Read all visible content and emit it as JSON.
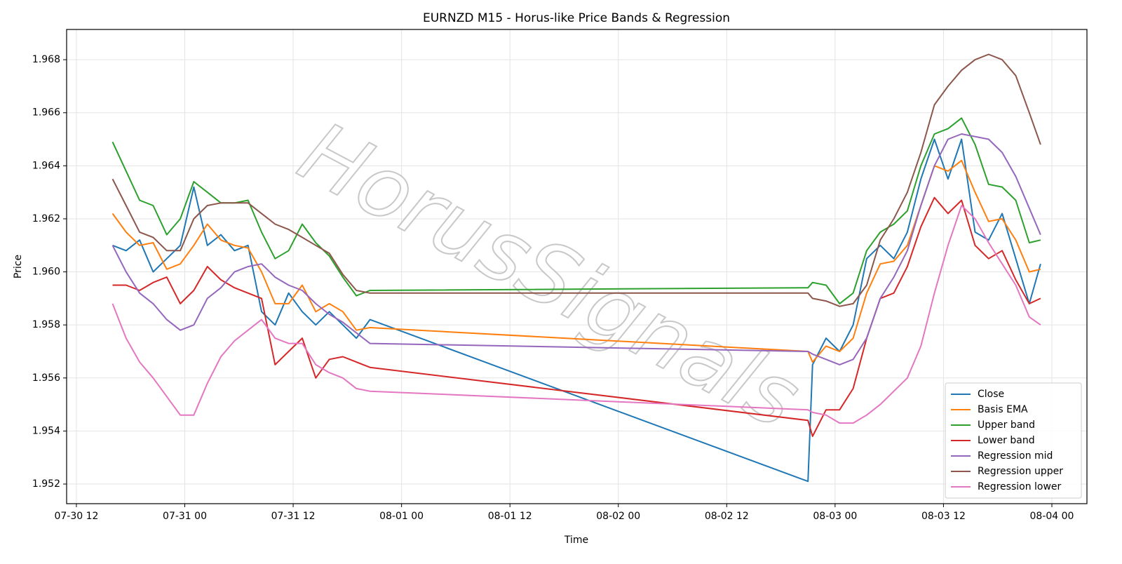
{
  "chart_data": {
    "type": "line",
    "title": "EURNZD M15 - Horus-like Price Bands & Regression",
    "x_label": "Time",
    "y_label": "Price",
    "watermark": "HorusSignals",
    "x": [
      "07-30 16:00",
      "07-30 17:30",
      "07-30 19:00",
      "07-30 20:30",
      "07-30 22:00",
      "07-30 23:30",
      "07-31 01:00",
      "07-31 02:30",
      "07-31 04:00",
      "07-31 05:30",
      "07-31 07:00",
      "07-31 08:30",
      "07-31 10:00",
      "07-31 11:30",
      "07-31 13:00",
      "07-31 14:30",
      "07-31 16:00",
      "07-31 17:30",
      "07-31 19:00",
      "07-31 20:30",
      "08-02 21:00",
      "08-02 21:30",
      "08-02 23:00",
      "08-03 00:30",
      "08-03 02:00",
      "08-03 03:30",
      "08-03 05:00",
      "08-03 06:30",
      "08-03 08:00",
      "08-03 09:30",
      "08-03 11:00",
      "08-03 12:30",
      "08-03 14:00",
      "08-03 15:30",
      "08-03 17:00",
      "08-03 18:30",
      "08-03 20:00",
      "08-03 21:30",
      "08-03 22:45"
    ],
    "series": [
      {
        "name": "Close",
        "color": "#1f77b4",
        "values": [
          1.961,
          1.9608,
          1.9612,
          1.96,
          1.9605,
          1.961,
          1.9632,
          1.961,
          1.9614,
          1.9608,
          1.961,
          1.9585,
          1.958,
          1.9592,
          1.9585,
          1.958,
          1.9585,
          1.958,
          1.9575,
          1.9582,
          1.9521,
          1.9565,
          1.9575,
          1.957,
          1.958,
          1.9605,
          1.961,
          1.9605,
          1.9615,
          1.9635,
          1.965,
          1.9635,
          1.965,
          1.9615,
          1.9612,
          1.9622,
          1.9605,
          1.9588,
          1.9603
        ]
      },
      {
        "name": "Basis EMA",
        "color": "#ff7f0e",
        "values": [
          1.9622,
          1.9615,
          1.961,
          1.9611,
          1.9601,
          1.9603,
          1.961,
          1.9618,
          1.9612,
          1.961,
          1.9609,
          1.96,
          1.9588,
          1.9588,
          1.9595,
          1.9585,
          1.9588,
          1.9585,
          1.9578,
          1.9579,
          1.957,
          1.9566,
          1.9572,
          1.957,
          1.9575,
          1.9592,
          1.9603,
          1.9604,
          1.961,
          1.9625,
          1.964,
          1.9638,
          1.9642,
          1.963,
          1.9619,
          1.962,
          1.9612,
          1.96,
          1.9601
        ]
      },
      {
        "name": "Upper band",
        "color": "#2ca02c",
        "values": [
          1.9649,
          1.9638,
          1.9627,
          1.9625,
          1.9614,
          1.962,
          1.9634,
          1.963,
          1.9626,
          1.9626,
          1.9627,
          1.9615,
          1.9605,
          1.9608,
          1.9618,
          1.9611,
          1.9606,
          1.9598,
          1.9591,
          1.9593,
          1.9594,
          1.9596,
          1.9595,
          1.9588,
          1.9592,
          1.9608,
          1.9615,
          1.9618,
          1.9623,
          1.964,
          1.9652,
          1.9654,
          1.9658,
          1.9648,
          1.9633,
          1.9632,
          1.9627,
          1.9611,
          1.9612
        ]
      },
      {
        "name": "Lower band",
        "color": "#d62728",
        "values": [
          1.9595,
          1.9595,
          1.9593,
          1.9596,
          1.9598,
          1.9588,
          1.9593,
          1.9602,
          1.9597,
          1.9594,
          1.9592,
          1.959,
          1.9565,
          1.957,
          1.9575,
          1.956,
          1.9567,
          1.9568,
          1.9566,
          1.9564,
          1.9544,
          1.9538,
          1.9548,
          1.9548,
          1.9556,
          1.9575,
          1.959,
          1.9592,
          1.9602,
          1.9617,
          1.9628,
          1.9622,
          1.9627,
          1.961,
          1.9605,
          1.9608,
          1.9597,
          1.9588,
          1.959
        ]
      },
      {
        "name": "Regression mid",
        "color": "#9467bd",
        "values": [
          1.961,
          1.96,
          1.9592,
          1.9588,
          1.9582,
          1.9578,
          1.958,
          1.959,
          1.9594,
          1.96,
          1.9602,
          1.9603,
          1.9598,
          1.9595,
          1.9593,
          1.9588,
          1.9584,
          1.9581,
          1.9577,
          1.9573,
          1.957,
          1.9569,
          1.9567,
          1.9565,
          1.9567,
          1.9575,
          1.959,
          1.9598,
          1.9608,
          1.9625,
          1.964,
          1.965,
          1.9652,
          1.9651,
          1.965,
          1.9645,
          1.9636,
          1.9624,
          1.9614
        ]
      },
      {
        "name": "Regression upper",
        "color": "#8c564b",
        "values": [
          1.9635,
          1.9625,
          1.9615,
          1.9613,
          1.9608,
          1.9608,
          1.962,
          1.9625,
          1.9626,
          1.9626,
          1.9626,
          1.9622,
          1.9618,
          1.9616,
          1.9613,
          1.961,
          1.9607,
          1.9599,
          1.9593,
          1.9592,
          1.9592,
          1.959,
          1.9589,
          1.9587,
          1.9588,
          1.9595,
          1.9612,
          1.962,
          1.963,
          1.9645,
          1.9663,
          1.967,
          1.9676,
          1.968,
          1.9682,
          1.968,
          1.9674,
          1.966,
          1.9648
        ]
      },
      {
        "name": "Regression lower",
        "color": "#e377c2",
        "values": [
          1.9588,
          1.9575,
          1.9566,
          1.956,
          1.9553,
          1.9546,
          1.9546,
          1.9558,
          1.9568,
          1.9574,
          1.9578,
          1.9582,
          1.9575,
          1.9573,
          1.9573,
          1.9565,
          1.9562,
          1.956,
          1.9556,
          1.9555,
          1.9548,
          1.9547,
          1.9546,
          1.9543,
          1.9543,
          1.9546,
          1.955,
          1.9555,
          1.956,
          1.9572,
          1.9592,
          1.961,
          1.9625,
          1.962,
          1.9611,
          1.9603,
          1.9595,
          1.9583,
          1.958
        ]
      }
    ],
    "xlim": [
      "07-30 10:55",
      "08-04 03:53"
    ],
    "xticks": [
      "07-30 12",
      "07-31 00",
      "07-31 12",
      "08-01 00",
      "08-01 12",
      "08-02 00",
      "08-02 12",
      "08-03 00",
      "08-03 12",
      "08-04 00"
    ],
    "ylim": [
      1.95126,
      1.96914
    ],
    "yticks": [
      1.952,
      1.954,
      1.956,
      1.958,
      {
        "value": 1.96,
        "label": "1.960"
      },
      1.962,
      1.964,
      1.966,
      1.968
    ],
    "grid": true,
    "legend": "lower right"
  }
}
